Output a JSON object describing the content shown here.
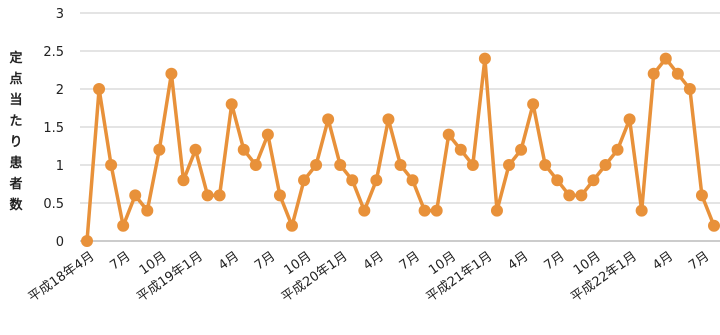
{
  "chart_data": {
    "type": "line",
    "title": "",
    "ylabel": "定点当たり患者数",
    "xlabel": "",
    "ylim": [
      0,
      3
    ],
    "yticks": [
      "0",
      "0.5",
      "1",
      "1.5",
      "2",
      "2.5",
      "3"
    ],
    "grid": "horizontal",
    "legend": "none",
    "x_labels": [
      {
        "index": 0,
        "label": "平成18年4月"
      },
      {
        "index": 3,
        "label": "7月"
      },
      {
        "index": 6,
        "label": "10月"
      },
      {
        "index": 9,
        "label": "平成19年1月"
      },
      {
        "index": 12,
        "label": "4月"
      },
      {
        "index": 15,
        "label": "7月"
      },
      {
        "index": 18,
        "label": "10月"
      },
      {
        "index": 21,
        "label": "平成20年1月"
      },
      {
        "index": 24,
        "label": "4月"
      },
      {
        "index": 27,
        "label": "7月"
      },
      {
        "index": 30,
        "label": "10月"
      },
      {
        "index": 33,
        "label": "平成21年1月"
      },
      {
        "index": 36,
        "label": "4月"
      },
      {
        "index": 39,
        "label": "7月"
      },
      {
        "index": 42,
        "label": "10月"
      },
      {
        "index": 45,
        "label": "平成22年1月"
      },
      {
        "index": 48,
        "label": "4月"
      },
      {
        "index": 51,
        "label": "7月"
      }
    ],
    "series": [
      {
        "color": "#e8913a",
        "values": [
          0,
          2.0,
          1.0,
          0.2,
          0.6,
          0.4,
          1.2,
          2.2,
          0.8,
          1.2,
          0.6,
          0.6,
          1.8,
          1.2,
          1.0,
          1.4,
          0.6,
          0.2,
          0.8,
          1.0,
          1.6,
          1.0,
          0.8,
          0.4,
          0.8,
          1.6,
          1.0,
          0.8,
          0.4,
          0.4,
          1.4,
          1.2,
          1.0,
          2.4,
          0.4,
          1.0,
          1.2,
          1.8,
          1.0,
          0.8,
          0.6,
          0.6,
          0.8,
          1.0,
          1.2,
          1.6,
          0.4,
          2.2,
          2.4,
          2.2,
          2.0,
          0.6,
          0.2
        ]
      }
    ]
  }
}
